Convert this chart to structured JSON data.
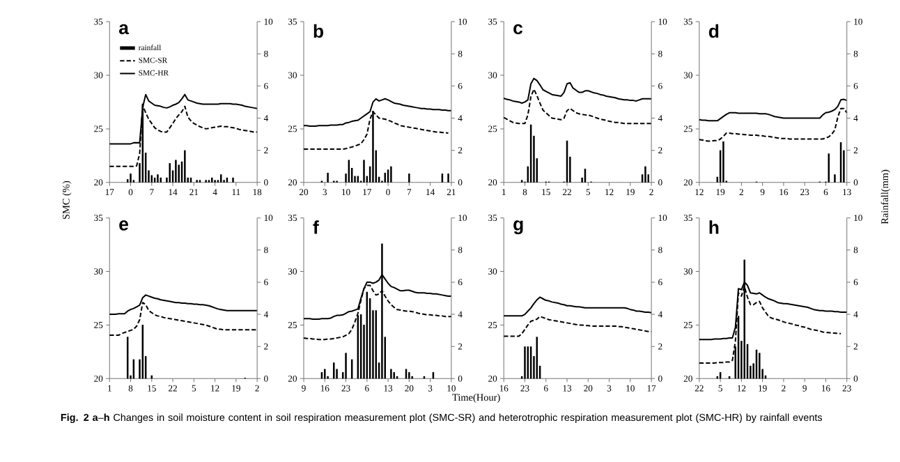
{
  "chart_data": [
    {
      "type": "line",
      "title": "a",
      "ylabel": "SMC (%)",
      "legend": "top left",
      "categories": [
        "17",
        null,
        null,
        null,
        null,
        null,
        null,
        "0",
        null,
        null,
        null,
        null,
        null,
        null,
        "7",
        null,
        null,
        null,
        null,
        null,
        null,
        "14",
        null,
        null,
        null,
        null,
        null,
        null,
        "21",
        null,
        null,
        null,
        null,
        null,
        null,
        "4",
        null,
        null,
        null,
        null,
        null,
        null,
        "11",
        null,
        null,
        null,
        null,
        null,
        null,
        "18"
      ],
      "ylim": [
        20,
        35
      ],
      "yticks": [
        20,
        25,
        30,
        35
      ],
      "y2lim": [
        0,
        10
      ],
      "y2ticks": [
        0,
        2,
        4,
        6,
        8,
        10
      ],
      "series": [
        {
          "name": "rainfall",
          "type": "bar",
          "axis": "y2",
          "color": "#000000",
          "values": [
            null,
            null,
            null,
            null,
            null,
            null,
            0.2,
            0.55,
            0.15,
            null,
            1.2,
            4.9,
            1.85,
            0.75,
            0.45,
            0.3,
            0.5,
            0.3,
            null,
            0.3,
            1.2,
            0.75,
            1.4,
            1.1,
            1.3,
            2.0,
            0.3,
            0.3,
            null,
            0.15,
            0.15,
            null,
            0.15,
            0.15,
            0.3,
            0.15,
            0.15,
            0.5,
            0.15,
            0.3,
            null,
            0.3,
            null,
            null,
            null,
            null,
            null,
            null,
            null,
            null
          ]
        },
        {
          "name": "SMC-SR",
          "line_style": "dashed",
          "color": "#000000",
          "values": [
            21.5,
            21.5,
            21.5,
            21.5,
            21.5,
            21.5,
            21.5,
            21.5,
            21.5,
            21.55,
            22.7,
            27.2,
            26.5,
            25.9,
            25.5,
            25.1,
            24.9,
            24.75,
            24.7,
            24.7,
            25.1,
            25.5,
            25.95,
            26.3,
            26.6,
            27.1,
            26.1,
            25.75,
            25.5,
            25.35,
            25.2,
            25.1,
            25.0,
            25.05,
            25.1,
            25.15,
            25.2,
            25.25,
            25.2,
            25.2,
            25.15,
            25.1,
            25.05,
            24.95,
            24.9,
            24.85,
            24.8,
            24.75,
            24.7,
            24.7
          ]
        },
        {
          "name": "SMC-HR",
          "line_style": "solid",
          "color": "#000000",
          "values": [
            23.6,
            23.6,
            23.6,
            23.6,
            23.6,
            23.6,
            23.6,
            23.6,
            23.7,
            23.7,
            23.7,
            27.0,
            28.2,
            27.6,
            27.4,
            27.2,
            27.15,
            27.1,
            27.0,
            26.95,
            27.05,
            27.2,
            27.3,
            27.45,
            27.8,
            28.2,
            27.7,
            27.6,
            27.5,
            27.4,
            27.35,
            27.3,
            27.3,
            27.3,
            27.3,
            27.3,
            27.3,
            27.35,
            27.35,
            27.35,
            27.35,
            27.3,
            27.3,
            27.25,
            27.2,
            27.1,
            27.05,
            27.0,
            26.95,
            26.9
          ]
        }
      ]
    },
    {
      "type": "line",
      "title": "b",
      "categories": [
        "20",
        null,
        null,
        null,
        null,
        null,
        null,
        "3",
        null,
        null,
        null,
        null,
        null,
        null,
        "10",
        null,
        null,
        null,
        null,
        null,
        null,
        "17",
        null,
        null,
        null,
        null,
        null,
        null,
        "0",
        null,
        null,
        null,
        null,
        null,
        null,
        "7",
        null,
        null,
        null,
        null,
        null,
        null,
        "14",
        null,
        null,
        null,
        null,
        null,
        null,
        "21"
      ],
      "ylim": [
        20,
        35
      ],
      "yticks": [
        20,
        25,
        30,
        35
      ],
      "y2lim": [
        0,
        10
      ],
      "y2ticks": [
        0,
        2,
        4,
        6,
        8,
        10
      ],
      "series": [
        {
          "type": "bar",
          "axis": "y2",
          "color": "#000000",
          "values": [
            null,
            null,
            null,
            null,
            null,
            null,
            0.1,
            null,
            0.6,
            null,
            0.1,
            0.1,
            null,
            null,
            0.55,
            1.4,
            0.9,
            0.4,
            0.4,
            0.1,
            1.4,
            0.4,
            1.0,
            4.45,
            2.0,
            0.35,
            0.1,
            0.6,
            0.8,
            1.0,
            null,
            null,
            null,
            null,
            null,
            0.55,
            null,
            null,
            null,
            null,
            null,
            null,
            null,
            null,
            null,
            null,
            0.55,
            null,
            0.55,
            null
          ]
        },
        {
          "line_style": "dashed",
          "color": "#000000",
          "values": [
            23.1,
            23.1,
            23.1,
            23.1,
            23.1,
            23.1,
            23.1,
            23.1,
            23.1,
            23.1,
            23.1,
            23.1,
            23.1,
            23.1,
            23.15,
            23.25,
            23.3,
            23.4,
            23.5,
            23.6,
            24.0,
            24.5,
            25.9,
            26.6,
            26.3,
            26.0,
            25.95,
            25.9,
            25.8,
            25.7,
            25.55,
            25.45,
            25.3,
            25.25,
            25.2,
            25.15,
            25.1,
            25.05,
            25.0,
            24.95,
            24.9,
            24.85,
            24.8,
            24.75,
            24.7,
            24.7,
            24.65,
            24.65,
            24.6,
            null
          ]
        },
        {
          "line_style": "solid",
          "color": "#000000",
          "values": [
            25.3,
            25.3,
            25.25,
            25.25,
            25.25,
            25.3,
            25.3,
            25.3,
            25.3,
            25.35,
            25.35,
            25.35,
            25.4,
            25.4,
            25.55,
            25.6,
            25.7,
            25.75,
            25.8,
            26.0,
            26.2,
            26.4,
            26.6,
            27.5,
            27.8,
            27.6,
            27.7,
            27.8,
            27.7,
            27.55,
            27.4,
            27.35,
            27.3,
            27.2,
            27.15,
            27.1,
            27.05,
            27.0,
            26.95,
            26.9,
            26.9,
            26.85,
            26.85,
            26.8,
            26.8,
            26.8,
            26.75,
            26.75,
            26.7,
            26.7
          ]
        }
      ]
    },
    {
      "type": "line",
      "title": "c",
      "categories": [
        "1",
        null,
        null,
        null,
        null,
        null,
        null,
        "8",
        null,
        null,
        null,
        null,
        null,
        null,
        "15",
        null,
        null,
        null,
        null,
        null,
        null,
        "22",
        null,
        null,
        null,
        null,
        null,
        null,
        "5",
        null,
        null,
        null,
        null,
        null,
        null,
        "12",
        null,
        null,
        null,
        null,
        null,
        null,
        "19",
        null,
        null,
        null,
        null,
        null,
        null,
        "2"
      ],
      "ylim": [
        20,
        35
      ],
      "yticks": [
        20,
        25,
        30,
        35
      ],
      "y2lim": [
        0,
        10
      ],
      "y2ticks": [
        0,
        2,
        4,
        6,
        8,
        10
      ],
      "series": [
        {
          "type": "bar",
          "axis": "y2",
          "color": "#000000",
          "values": [
            null,
            null,
            null,
            null,
            null,
            null,
            0.15,
            0.05,
            1.0,
            3.6,
            2.9,
            1.5,
            null,
            null,
            0.05,
            0.05,
            null,
            null,
            null,
            null,
            0.05,
            2.6,
            1.6,
            null,
            null,
            null,
            0.3,
            0.85,
            null,
            0.05,
            null,
            null,
            null,
            null,
            null,
            null,
            null,
            null,
            null,
            null,
            null,
            null,
            null,
            null,
            null,
            null,
            0.5,
            1.0,
            0.5,
            null
          ]
        },
        {
          "line_style": "dashed",
          "color": "#000000",
          "values": [
            26.05,
            25.9,
            25.75,
            25.6,
            25.55,
            25.5,
            25.5,
            25.5,
            26.3,
            28.0,
            28.7,
            28.1,
            27.4,
            26.75,
            26.5,
            26.25,
            26.0,
            25.95,
            25.9,
            25.85,
            26.0,
            26.7,
            26.9,
            26.7,
            26.5,
            26.4,
            26.35,
            26.3,
            26.3,
            26.2,
            26.1,
            26.0,
            25.9,
            25.85,
            25.8,
            25.7,
            25.65,
            25.6,
            25.6,
            25.55,
            25.5,
            25.5,
            25.5,
            25.5,
            25.5,
            25.5,
            25.5,
            25.5,
            25.5,
            25.5
          ]
        },
        {
          "line_style": "solid",
          "color": "#000000",
          "values": [
            27.85,
            27.75,
            27.7,
            27.6,
            27.55,
            27.5,
            27.4,
            27.5,
            27.7,
            29.2,
            29.7,
            29.5,
            29.1,
            28.65,
            28.5,
            28.35,
            28.2,
            28.15,
            28.1,
            28.05,
            28.4,
            29.2,
            29.3,
            28.8,
            28.6,
            28.4,
            28.4,
            28.55,
            28.55,
            28.45,
            28.35,
            28.3,
            28.2,
            28.15,
            28.05,
            28.0,
            27.95,
            27.9,
            27.8,
            27.75,
            27.7,
            27.7,
            27.65,
            27.65,
            27.6,
            27.7,
            27.8,
            27.8,
            27.8,
            27.8
          ]
        }
      ]
    },
    {
      "type": "line",
      "title": "d",
      "y2label": "Rainfall(mm)",
      "categories": [
        "12",
        null,
        null,
        null,
        null,
        null,
        null,
        "19",
        null,
        null,
        null,
        null,
        null,
        null,
        "2",
        null,
        null,
        null,
        null,
        null,
        null,
        "9",
        null,
        null,
        null,
        null,
        null,
        null,
        "16",
        null,
        null,
        null,
        null,
        null,
        null,
        "23",
        null,
        null,
        null,
        null,
        null,
        null,
        "6",
        null,
        null,
        null,
        null,
        null,
        null,
        "13"
      ],
      "ylim": [
        20,
        35
      ],
      "yticks": [
        20,
        25,
        30,
        35
      ],
      "y2lim": [
        0,
        10
      ],
      "y2ticks": [
        0,
        2,
        4,
        6,
        8,
        10
      ],
      "series": [
        {
          "type": "bar",
          "axis": "y2",
          "color": "#000000",
          "values": [
            null,
            null,
            null,
            null,
            null,
            null,
            0.35,
            2.0,
            2.55,
            0.1,
            null,
            null,
            null,
            null,
            null,
            null,
            null,
            null,
            null,
            0.05,
            null,
            null,
            null,
            null,
            null,
            null,
            null,
            null,
            null,
            null,
            null,
            null,
            null,
            null,
            null,
            null,
            null,
            null,
            null,
            null,
            0.05,
            null,
            0.05,
            1.8,
            null,
            0.5,
            null,
            2.5,
            2.0,
            null
          ]
        },
        {
          "line_style": "dashed",
          "color": "#000000",
          "values": [
            24.0,
            23.95,
            23.9,
            23.85,
            23.85,
            23.9,
            23.9,
            24.05,
            24.3,
            24.6,
            24.6,
            24.55,
            24.55,
            24.5,
            24.5,
            24.45,
            24.45,
            24.4,
            24.4,
            24.4,
            24.35,
            24.35,
            24.3,
            24.3,
            24.25,
            24.2,
            24.15,
            24.1,
            24.1,
            24.1,
            24.05,
            24.05,
            24.05,
            24.05,
            24.05,
            24.05,
            24.05,
            24.05,
            24.05,
            24.05,
            24.05,
            24.05,
            24.15,
            24.25,
            24.5,
            24.9,
            26.1,
            26.9,
            26.9,
            26.5
          ]
        },
        {
          "line_style": "solid",
          "color": "#000000",
          "values": [
            25.85,
            25.8,
            25.8,
            25.75,
            25.75,
            25.75,
            25.75,
            25.95,
            26.15,
            26.35,
            26.5,
            26.5,
            26.5,
            26.45,
            26.45,
            26.45,
            26.45,
            26.45,
            26.45,
            26.45,
            26.4,
            26.4,
            26.4,
            26.35,
            26.25,
            26.15,
            26.1,
            26.05,
            26.0,
            26.0,
            26.0,
            26.0,
            26.0,
            26.0,
            26.0,
            26.0,
            26.0,
            26.0,
            26.0,
            26.0,
            26.0,
            26.3,
            26.5,
            26.55,
            26.65,
            26.8,
            27.1,
            27.7,
            27.75,
            27.65
          ]
        }
      ]
    },
    {
      "type": "line",
      "title": "e",
      "categories": [
        "1",
        null,
        null,
        null,
        null,
        null,
        null,
        "8",
        null,
        null,
        null,
        null,
        null,
        null,
        "15",
        null,
        null,
        null,
        null,
        null,
        null,
        "22",
        null,
        null,
        null,
        null,
        null,
        null,
        "5",
        null,
        null,
        null,
        null,
        null,
        null,
        "12",
        null,
        null,
        null,
        null,
        null,
        null,
        "19",
        null,
        null,
        null,
        null,
        null,
        null,
        "2"
      ],
      "ylim": [
        20,
        35
      ],
      "yticks": [
        20,
        25,
        30,
        35
      ],
      "y2lim": [
        0,
        10
      ],
      "y2ticks": [
        0,
        2,
        4,
        6,
        8,
        10
      ],
      "series": [
        {
          "type": "bar",
          "axis": "y2",
          "color": "#000000",
          "values": [
            null,
            null,
            null,
            null,
            null,
            null,
            2.6,
            0.2,
            1.2,
            null,
            1.2,
            3.35,
            1.4,
            null,
            0.2,
            null,
            null,
            null,
            null,
            null,
            null,
            null,
            null,
            null,
            null,
            null,
            null,
            null,
            null,
            null,
            null,
            null,
            null,
            null,
            null,
            null,
            null,
            null,
            null,
            null,
            null,
            null,
            null,
            null,
            null,
            0.05,
            null,
            null,
            null,
            null
          ]
        },
        {
          "line_style": "dashed",
          "color": "#000000",
          "values": [
            24.05,
            24.05,
            24.05,
            24.05,
            24.2,
            24.3,
            24.4,
            24.5,
            24.6,
            24.9,
            25.5,
            27.1,
            26.9,
            26.35,
            26.15,
            25.95,
            25.85,
            25.8,
            25.7,
            25.65,
            25.6,
            25.55,
            25.5,
            25.45,
            25.4,
            25.35,
            25.3,
            25.25,
            25.2,
            25.15,
            25.1,
            25.05,
            25.0,
            24.9,
            24.8,
            24.7,
            24.6,
            24.6,
            24.55,
            24.55,
            24.55,
            24.55,
            24.55,
            24.55,
            24.55,
            24.55,
            24.55,
            24.55,
            24.55,
            24.55
          ]
        },
        {
          "line_style": "solid",
          "color": "#000000",
          "values": [
            26.0,
            26.0,
            26.0,
            26.05,
            26.05,
            26.05,
            26.3,
            26.45,
            26.55,
            26.7,
            26.85,
            27.55,
            27.8,
            27.7,
            27.6,
            27.5,
            27.45,
            27.35,
            27.3,
            27.25,
            27.2,
            27.15,
            27.1,
            27.1,
            27.05,
            27.05,
            27.0,
            27.0,
            26.95,
            26.95,
            26.9,
            26.9,
            26.85,
            26.8,
            26.7,
            26.6,
            26.5,
            26.45,
            26.4,
            26.35,
            26.35,
            26.35,
            26.35,
            26.35,
            26.35,
            26.35,
            26.35,
            26.35,
            26.35,
            26.35
          ]
        }
      ]
    },
    {
      "type": "line",
      "title": "f",
      "xlabel": "Time(Hour)",
      "categories": [
        "9",
        null,
        null,
        null,
        null,
        null,
        null,
        "16",
        null,
        null,
        null,
        null,
        null,
        null,
        "23",
        null,
        null,
        null,
        null,
        null,
        null,
        "6",
        null,
        null,
        null,
        null,
        null,
        null,
        "13",
        null,
        null,
        null,
        null,
        null,
        null,
        "20",
        null,
        null,
        null,
        null,
        null,
        null,
        "3",
        null,
        null,
        null,
        null,
        null,
        null,
        "10"
      ],
      "ylim": [
        20,
        35
      ],
      "yticks": [
        20,
        25,
        30,
        35
      ],
      "y2lim": [
        0,
        10
      ],
      "y2ticks": [
        0,
        2,
        4,
        6,
        8,
        10
      ],
      "series": [
        {
          "type": "bar",
          "axis": "y2",
          "color": "#000000",
          "values": [
            null,
            null,
            null,
            null,
            null,
            null,
            0.4,
            0.6,
            0.15,
            null,
            1.0,
            0.6,
            null,
            0.4,
            1.6,
            null,
            1.2,
            null,
            3.95,
            4.0,
            3.35,
            5.4,
            5.0,
            4.25,
            4.25,
            1.0,
            8.4,
            2.6,
            null,
            0.6,
            0.4,
            0.15,
            null,
            null,
            0.6,
            0.4,
            0.15,
            null,
            null,
            null,
            0.15,
            null,
            null,
            0.4,
            null,
            null,
            null,
            null,
            null,
            null
          ]
        },
        {
          "line_style": "dashed",
          "color": "#000000",
          "values": [
            23.8,
            23.75,
            23.75,
            23.7,
            23.7,
            23.65,
            23.65,
            23.65,
            23.7,
            23.7,
            23.75,
            23.8,
            23.85,
            23.9,
            24.05,
            24.2,
            24.6,
            25.3,
            26.1,
            27.3,
            28.4,
            28.7,
            28.7,
            28.2,
            27.8,
            27.9,
            28.2,
            27.7,
            27.25,
            26.9,
            26.65,
            26.45,
            26.4,
            26.35,
            26.3,
            26.3,
            26.25,
            26.2,
            26.1,
            26.05,
            26.0,
            25.95,
            25.95,
            25.9,
            25.9,
            25.85,
            25.85,
            25.8,
            25.8,
            25.8
          ]
        },
        {
          "line_style": "solid",
          "color": "#000000",
          "values": [
            25.6,
            25.6,
            25.6,
            25.55,
            25.55,
            25.55,
            25.6,
            25.6,
            25.6,
            25.65,
            25.8,
            25.9,
            25.9,
            25.95,
            26.1,
            26.25,
            26.3,
            26.4,
            26.5,
            27.5,
            28.4,
            29.0,
            29.0,
            28.9,
            29.0,
            29.2,
            29.7,
            29.3,
            28.9,
            28.6,
            28.5,
            28.35,
            28.2,
            28.2,
            28.25,
            28.25,
            28.15,
            28.05,
            28.0,
            28.0,
            28.0,
            27.95,
            27.95,
            27.9,
            27.9,
            27.85,
            27.8,
            27.75,
            27.7,
            27.7
          ]
        }
      ]
    },
    {
      "type": "line",
      "title": "g",
      "categories": [
        "16",
        null,
        null,
        null,
        null,
        null,
        null,
        "23",
        null,
        null,
        null,
        null,
        null,
        null,
        "6",
        null,
        null,
        null,
        null,
        null,
        null,
        "13",
        null,
        null,
        null,
        null,
        null,
        null,
        "20",
        null,
        null,
        null,
        null,
        null,
        null,
        "3",
        null,
        null,
        null,
        null,
        null,
        null,
        "10",
        null,
        null,
        null,
        null,
        null,
        null,
        "17"
      ],
      "ylim": [
        20,
        35
      ],
      "yticks": [
        20,
        25,
        30,
        35
      ],
      "y2lim": [
        0,
        10
      ],
      "y2ticks": [
        0,
        2,
        4,
        6,
        8,
        10
      ],
      "series": [
        {
          "type": "bar",
          "axis": "y2",
          "color": "#000000",
          "values": [
            null,
            null,
            null,
            null,
            null,
            null,
            0.15,
            2.0,
            2.0,
            2.0,
            1.4,
            2.6,
            0.8,
            null,
            null,
            null,
            null,
            null,
            null,
            null,
            null,
            null,
            null,
            null,
            null,
            null,
            null,
            null,
            null,
            null,
            null,
            null,
            null,
            null,
            null,
            null,
            null,
            null,
            null,
            null,
            null,
            null,
            null,
            null,
            null,
            null,
            null,
            null,
            null,
            null
          ]
        },
        {
          "line_style": "dashed",
          "color": "#000000",
          "values": [
            23.95,
            23.95,
            23.95,
            23.95,
            23.95,
            23.95,
            24.2,
            24.6,
            25.0,
            25.35,
            25.45,
            25.55,
            25.8,
            25.7,
            25.6,
            25.5,
            25.45,
            25.4,
            25.35,
            25.3,
            25.25,
            25.2,
            25.15,
            25.1,
            25.05,
            25.0,
            25.0,
            24.95,
            24.95,
            24.9,
            24.9,
            24.9,
            24.9,
            24.9,
            24.9,
            24.9,
            24.9,
            24.9,
            24.85,
            24.85,
            24.8,
            24.75,
            24.7,
            24.65,
            24.6,
            24.55,
            24.5,
            24.45,
            24.4,
            24.4
          ]
        },
        {
          "line_style": "solid",
          "color": "#000000",
          "values": [
            25.85,
            25.85,
            25.85,
            25.85,
            25.85,
            25.85,
            25.85,
            26.0,
            26.3,
            26.6,
            27.0,
            27.35,
            27.6,
            27.45,
            27.3,
            27.25,
            27.15,
            27.1,
            27.05,
            26.95,
            26.9,
            26.8,
            26.8,
            26.75,
            26.7,
            26.7,
            26.65,
            26.6,
            26.6,
            26.6,
            26.6,
            26.6,
            26.6,
            26.6,
            26.6,
            26.6,
            26.6,
            26.6,
            26.6,
            26.6,
            26.6,
            26.55,
            26.45,
            26.4,
            26.3,
            26.3,
            26.25,
            26.2,
            26.2,
            26.15
          ]
        }
      ]
    },
    {
      "type": "line",
      "title": "h",
      "annotations": [
        "**Fig. 2 a**–**h** Changes in soil moisture content in soil respiration measurement plot (SMC-SR) and heterotrophic respiration measurement plot (SMC-HR) by rainfall events"
      ],
      "categories": [
        "22",
        null,
        null,
        null,
        null,
        null,
        null,
        "5",
        null,
        null,
        null,
        null,
        null,
        null,
        "12",
        null,
        null,
        null,
        null,
        null,
        null,
        "19",
        null,
        null,
        null,
        null,
        null,
        null,
        "2",
        null,
        null,
        null,
        null,
        null,
        null,
        "9",
        null,
        null,
        null,
        null,
        null,
        null,
        "16",
        null,
        null,
        null,
        null,
        null,
        null,
        "23"
      ],
      "ylim": [
        20,
        35
      ],
      "yticks": [
        20,
        25,
        30,
        35
      ],
      "y2lim": [
        0,
        10
      ],
      "y2ticks": [
        0,
        2,
        4,
        6,
        8,
        10
      ],
      "series": [
        {
          "type": "bar",
          "axis": "y2",
          "color": "#000000",
          "values": [
            null,
            null,
            null,
            null,
            null,
            null,
            0.15,
            0.4,
            null,
            null,
            0.15,
            null,
            2.0,
            3.9,
            2.35,
            7.4,
            2.15,
            0.8,
            0.95,
            1.8,
            1.6,
            0.6,
            0.2,
            null,
            null,
            null,
            null,
            null,
            null,
            null,
            null,
            null,
            null,
            null,
            null,
            null,
            null,
            null,
            null,
            null,
            null,
            null,
            null,
            null,
            null,
            null,
            null,
            null,
            null,
            null
          ]
        },
        {
          "line_style": "dashed",
          "color": "#000000",
          "values": [
            21.45,
            21.45,
            21.45,
            21.45,
            21.45,
            21.45,
            21.5,
            21.5,
            21.5,
            21.55,
            21.55,
            21.7,
            23.5,
            28.0,
            27.7,
            28.6,
            27.6,
            26.9,
            26.9,
            27.1,
            27.2,
            26.6,
            26.2,
            25.8,
            25.65,
            25.55,
            25.5,
            25.4,
            25.3,
            25.2,
            25.15,
            25.1,
            25.0,
            24.95,
            24.85,
            24.8,
            24.7,
            24.6,
            24.55,
            24.5,
            24.45,
            24.35,
            24.3,
            24.3,
            24.25,
            24.25,
            24.2,
            24.2,
            null,
            null
          ]
        },
        {
          "line_style": "solid",
          "color": "#000000",
          "values": [
            23.65,
            23.65,
            23.65,
            23.65,
            23.65,
            23.7,
            23.7,
            23.7,
            23.75,
            23.75,
            23.8,
            23.8,
            24.8,
            28.4,
            28.3,
            29.0,
            28.7,
            28.0,
            27.95,
            27.9,
            28.0,
            27.8,
            27.6,
            27.45,
            27.35,
            27.25,
            27.1,
            27.05,
            27.0,
            27.0,
            26.95,
            26.9,
            26.85,
            26.8,
            26.75,
            26.7,
            26.65,
            26.55,
            26.45,
            26.4,
            26.35,
            26.35,
            26.3,
            26.3,
            26.3,
            26.25,
            26.25,
            26.2,
            26.2,
            26.2
          ]
        }
      ]
    }
  ]
}
